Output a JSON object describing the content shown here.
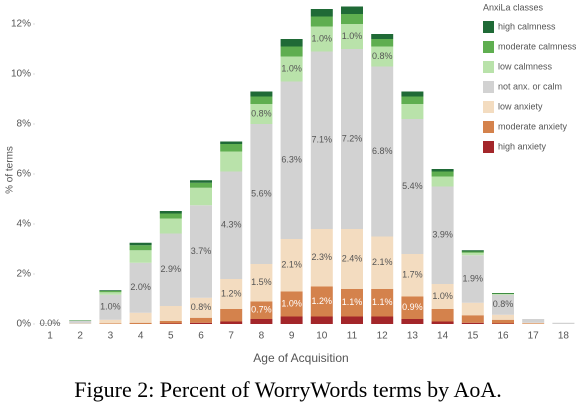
{
  "chart_data": {
    "type": "stacked-bar",
    "x_label": "Age of Acquisition",
    "y_label": "% of terms",
    "legend_title": "AnxiLa classes",
    "legend": "top-right",
    "caption": "Figure 2: Percent of WorryWords terms by AoA.",
    "categories": [
      "1",
      "2",
      "3",
      "4",
      "5",
      "6",
      "7",
      "8",
      "9",
      "10",
      "11",
      "12",
      "13",
      "14",
      "15",
      "16",
      "17",
      "18"
    ],
    "ylim": [
      0,
      12.8
    ],
    "yticks": [
      {
        "value": 0,
        "label": "0%"
      },
      {
        "value": 2,
        "label": "2%"
      },
      {
        "value": 4,
        "label": "4%"
      },
      {
        "value": 6,
        "label": "6%"
      },
      {
        "value": 8,
        "label": "8%"
      },
      {
        "value": 10,
        "label": "10%"
      },
      {
        "value": 12,
        "label": "12%"
      }
    ],
    "series": [
      {
        "name": "high anxiety",
        "color": "#a3262a",
        "label_color": "#ffffff",
        "values": [
          0,
          0,
          0,
          0,
          0.02,
          0.05,
          0.1,
          0.2,
          0.3,
          0.3,
          0.3,
          0.3,
          0.2,
          0.1,
          0.05,
          0.02,
          0,
          0
        ]
      },
      {
        "name": "moderate anxiety",
        "color": "#d4824c",
        "label_color": "#ffffff",
        "values": [
          0,
          0,
          0.02,
          0.05,
          0.1,
          0.2,
          0.5,
          0.7,
          1.0,
          1.2,
          1.1,
          1.1,
          0.9,
          0.5,
          0.3,
          0.15,
          0.02,
          0
        ],
        "value_labels": [
          null,
          null,
          null,
          null,
          null,
          null,
          null,
          "0.7%",
          "1.0%",
          "1.2%",
          "1.1%",
          "1.1%",
          "0.9%",
          null,
          null,
          null,
          null,
          null
        ]
      },
      {
        "name": "low anxiety",
        "color": "#f3dcc0",
        "label_color": "#555555",
        "values": [
          0,
          0.02,
          0.15,
          0.4,
          0.6,
          0.8,
          1.2,
          1.5,
          2.1,
          2.3,
          2.4,
          2.1,
          1.7,
          1.0,
          0.5,
          0.2,
          0.03,
          0
        ],
        "value_labels": [
          null,
          null,
          null,
          null,
          null,
          "0.8%",
          "1.2%",
          "1.5%",
          "2.1%",
          "2.3%",
          "2.4%",
          "2.1%",
          "1.7%",
          "1.0%",
          null,
          null,
          null,
          null
        ]
      },
      {
        "name": "not anx. or calm",
        "color": "#d2d2d2",
        "label_color": "#555555",
        "values": [
          0.03,
          0.1,
          1.0,
          2.0,
          2.9,
          3.7,
          4.3,
          5.6,
          6.3,
          7.1,
          7.2,
          6.8,
          5.4,
          3.9,
          1.9,
          0.8,
          0.15,
          0.05
        ],
        "value_labels": [
          "0.0%",
          null,
          "1.0%",
          "2.0%",
          "2.9%",
          "3.7%",
          "4.3%",
          "5.6%",
          "6.3%",
          "7.1%",
          "7.2%",
          "6.8%",
          "5.4%",
          "3.9%",
          "1.9%",
          "0.8%",
          null,
          null
        ]
      },
      {
        "name": "low calmness",
        "color": "#b9e2aa",
        "label_color": "#555555",
        "values": [
          0,
          0.01,
          0.1,
          0.5,
          0.6,
          0.7,
          0.8,
          0.8,
          1.0,
          1.0,
          1.0,
          0.8,
          0.6,
          0.4,
          0.1,
          0.03,
          0,
          0
        ],
        "value_labels": [
          null,
          null,
          null,
          null,
          null,
          null,
          null,
          "0.8%",
          "1.0%",
          "1.0%",
          "1.0%",
          "0.8%",
          null,
          null,
          null,
          null,
          null,
          null
        ]
      },
      {
        "name": "moderate calmness",
        "color": "#5fae50",
        "label_color": "#ffffff",
        "values": [
          0,
          0.01,
          0.05,
          0.2,
          0.2,
          0.2,
          0.3,
          0.3,
          0.4,
          0.4,
          0.4,
          0.3,
          0.3,
          0.2,
          0.05,
          0.02,
          0,
          0
        ]
      },
      {
        "name": "high calmness",
        "color": "#1f6a36",
        "label_color": "#ffffff",
        "values": [
          0,
          0.01,
          0.03,
          0.1,
          0.1,
          0.1,
          0.1,
          0.2,
          0.3,
          0.3,
          0.3,
          0.2,
          0.2,
          0.1,
          0.05,
          0.02,
          0,
          0
        ]
      }
    ]
  }
}
